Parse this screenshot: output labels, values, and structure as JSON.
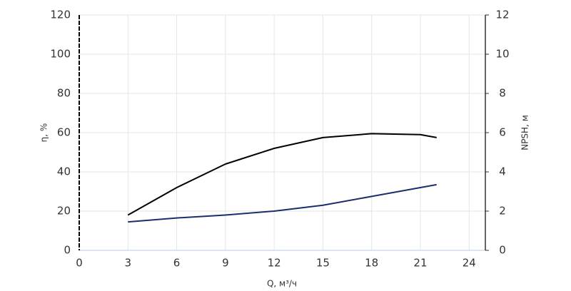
{
  "chart_data": {
    "type": "line",
    "x_label": "Q, м³/ч",
    "y_label": "η, %",
    "y2_label": "NPSH, м",
    "x": [
      3,
      6,
      9,
      12,
      15,
      18,
      21,
      22
    ],
    "series": [
      {
        "color": "#000000",
        "values": [
          18,
          32,
          44,
          52,
          57.5,
          59.5,
          59,
          57.5
        ]
      },
      {
        "color": "#1a2e6e",
        "axis": "y2",
        "values": [
          1.45,
          1.65,
          1.8,
          2.0,
          2.3,
          2.75,
          3.2,
          3.35
        ]
      }
    ],
    "xlim": [
      0,
      25
    ],
    "xticks": [
      0,
      3,
      6,
      9,
      12,
      15,
      18,
      21,
      24
    ],
    "ylim": [
      0,
      120
    ],
    "yticks": [
      0,
      20,
      40,
      60,
      80,
      100,
      120
    ],
    "y2lim": [
      0,
      12
    ],
    "y2ticks": [
      0,
      2,
      4,
      6,
      8,
      10,
      12
    ],
    "grid": true
  }
}
